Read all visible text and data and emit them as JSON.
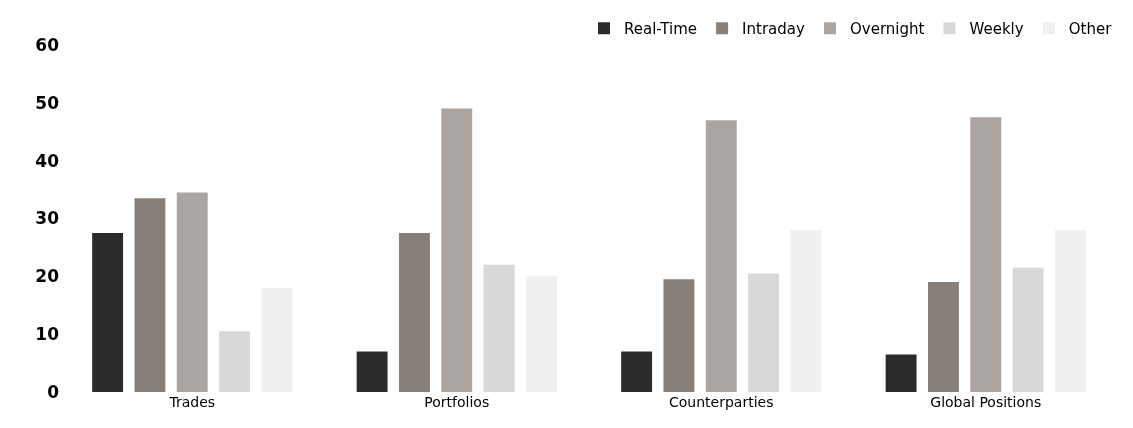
{
  "chart_data": {
    "type": "bar",
    "categories": [
      "Trades",
      "Portfolios",
      "Counterparties",
      "Global Positions"
    ],
    "series": [
      {
        "name": "Real-Time",
        "color": "#2d2b29",
        "values": [
          27.5,
          7,
          7,
          6.5
        ]
      },
      {
        "name": "Intraday",
        "color": "#877f78",
        "values": [
          33.5,
          27.5,
          19.5,
          19
        ]
      },
      {
        "name": "Overnight",
        "color": "#aaa5a1",
        "values": [
          34.5,
          49,
          47,
          47.5
        ]
      },
      {
        "name": "Weekly",
        "color": "#d9d8d7",
        "values": [
          10.5,
          22,
          20.5,
          21.5
        ]
      },
      {
        "name": "Other",
        "color": "#f1f0ef",
        "values": [
          18,
          20,
          28,
          28
        ]
      }
    ],
    "ylim": [
      0,
      60
    ],
    "yticks": [
      0,
      10,
      20,
      30,
      40,
      50,
      60
    ],
    "legend": "top right"
  }
}
